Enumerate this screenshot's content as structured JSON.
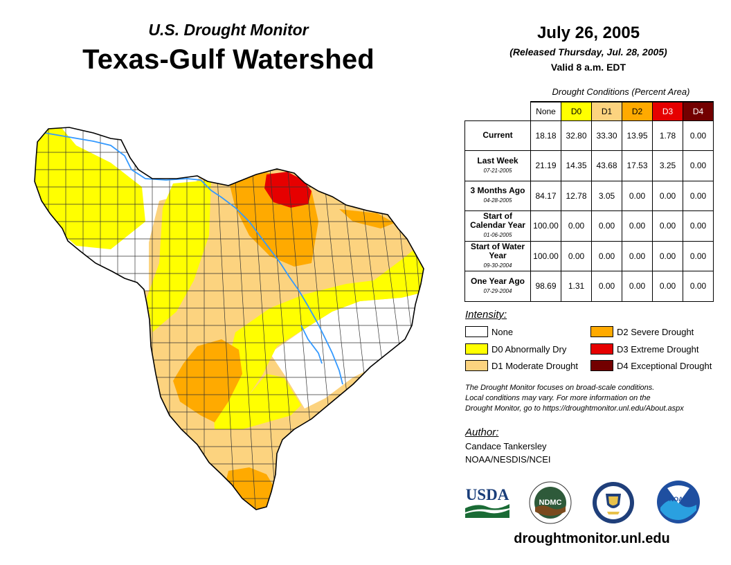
{
  "header": {
    "subtitle": "U.S. Drought Monitor",
    "title": "Texas-Gulf Watershed",
    "date": "July 26, 2005",
    "released": "(Released Thursday, Jul. 28, 2005)",
    "valid": "Valid 8 a.m. EDT"
  },
  "table": {
    "caption": "Drought Conditions (Percent Area)",
    "columns": [
      {
        "label": "None",
        "color": "#ffffff",
        "text_color": "#000000"
      },
      {
        "label": "D0",
        "color": "#ffff00",
        "text_color": "#000000"
      },
      {
        "label": "D1",
        "color": "#fcd37f",
        "text_color": "#000000"
      },
      {
        "label": "D2",
        "color": "#ffaa00",
        "text_color": "#000000"
      },
      {
        "label": "D3",
        "color": "#e60000",
        "text_color": "#ffffff"
      },
      {
        "label": "D4",
        "color": "#730000",
        "text_color": "#ffffff"
      }
    ],
    "rows": [
      {
        "label": "Current",
        "date": "",
        "values": [
          "18.18",
          "32.80",
          "33.30",
          "13.95",
          "1.78",
          "0.00"
        ]
      },
      {
        "label": "Last Week",
        "date": "07-21-2005",
        "values": [
          "21.19",
          "14.35",
          "43.68",
          "17.53",
          "3.25",
          "0.00"
        ]
      },
      {
        "label": "3 Months Ago",
        "date": "04-28-2005",
        "values": [
          "84.17",
          "12.78",
          "3.05",
          "0.00",
          "0.00",
          "0.00"
        ]
      },
      {
        "label": "Start of Calendar Year",
        "date": "01-06-2005",
        "values": [
          "100.00",
          "0.00",
          "0.00",
          "0.00",
          "0.00",
          "0.00"
        ]
      },
      {
        "label": "Start of Water Year",
        "date": "09-30-2004",
        "values": [
          "100.00",
          "0.00",
          "0.00",
          "0.00",
          "0.00",
          "0.00"
        ]
      },
      {
        "label": "One Year Ago",
        "date": "07-29-2004",
        "values": [
          "98.69",
          "1.31",
          "0.00",
          "0.00",
          "0.00",
          "0.00"
        ]
      }
    ]
  },
  "legend": {
    "heading": "Intensity:",
    "items": [
      {
        "label": "None",
        "color": "#ffffff"
      },
      {
        "label": "D0 Abnormally Dry",
        "color": "#ffff00"
      },
      {
        "label": "D1 Moderate Drought",
        "color": "#fcd37f"
      },
      {
        "label": "D2 Severe Drought",
        "color": "#ffaa00"
      },
      {
        "label": "D3 Extreme Drought",
        "color": "#e60000"
      },
      {
        "label": "D4 Exceptional Drought",
        "color": "#730000"
      }
    ]
  },
  "note": {
    "line1": "The Drought Monitor focuses on broad-scale conditions.",
    "line2": "Local conditions may vary. For more information on the",
    "line3": "Drought Monitor, go to https://droughtmonitor.unl.edu/About.aspx"
  },
  "author": {
    "heading": "Author:",
    "name": "Candace Tankersley",
    "org": "NOAA/NESDIS/NCEI"
  },
  "logos": {
    "usda": "USDA",
    "ndmc": "NDMC",
    "noaa": "NOAA"
  },
  "footer": {
    "url": "droughtmonitor.unl.edu"
  },
  "colors": {
    "river": "#3399ff",
    "county_line": "#333333"
  }
}
